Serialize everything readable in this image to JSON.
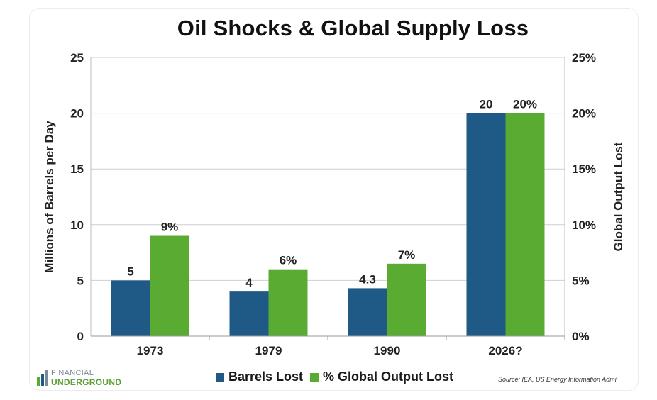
{
  "chart_data": {
    "type": "bar",
    "title": "Oil Shocks & Global Supply Loss",
    "categories": [
      "1973",
      "1979",
      "1990",
      "2026?"
    ],
    "series": [
      {
        "name": "Barrels Lost",
        "values": [
          5,
          4,
          4.3,
          20
        ],
        "labels": [
          "5",
          "4",
          "4.3",
          "20"
        ],
        "color": "#1f5a87",
        "axis": "left"
      },
      {
        "name": "% Global Output Lost",
        "values": [
          9,
          6,
          6.5,
          20
        ],
        "labels": [
          "9%",
          "6%",
          "7%",
          "20%"
        ],
        "color": "#5aab32",
        "axis": "right"
      }
    ],
    "ylabel": "Millions of Barrels per Day",
    "y2label": "Global Output Lost",
    "ylim": [
      0,
      25
    ],
    "y2lim": [
      0,
      25
    ],
    "yticks": [
      "0",
      "5",
      "10",
      "15",
      "20",
      "25"
    ],
    "y2ticks": [
      "0%",
      "5%",
      "10%",
      "15%",
      "20%",
      "25%"
    ],
    "grid": true,
    "legend_position": "bottom"
  },
  "source": "Source: IEA, US Energy Information Admi",
  "logo": {
    "line1": "FINANCIAL",
    "line2": "UNDERGROUND"
  }
}
